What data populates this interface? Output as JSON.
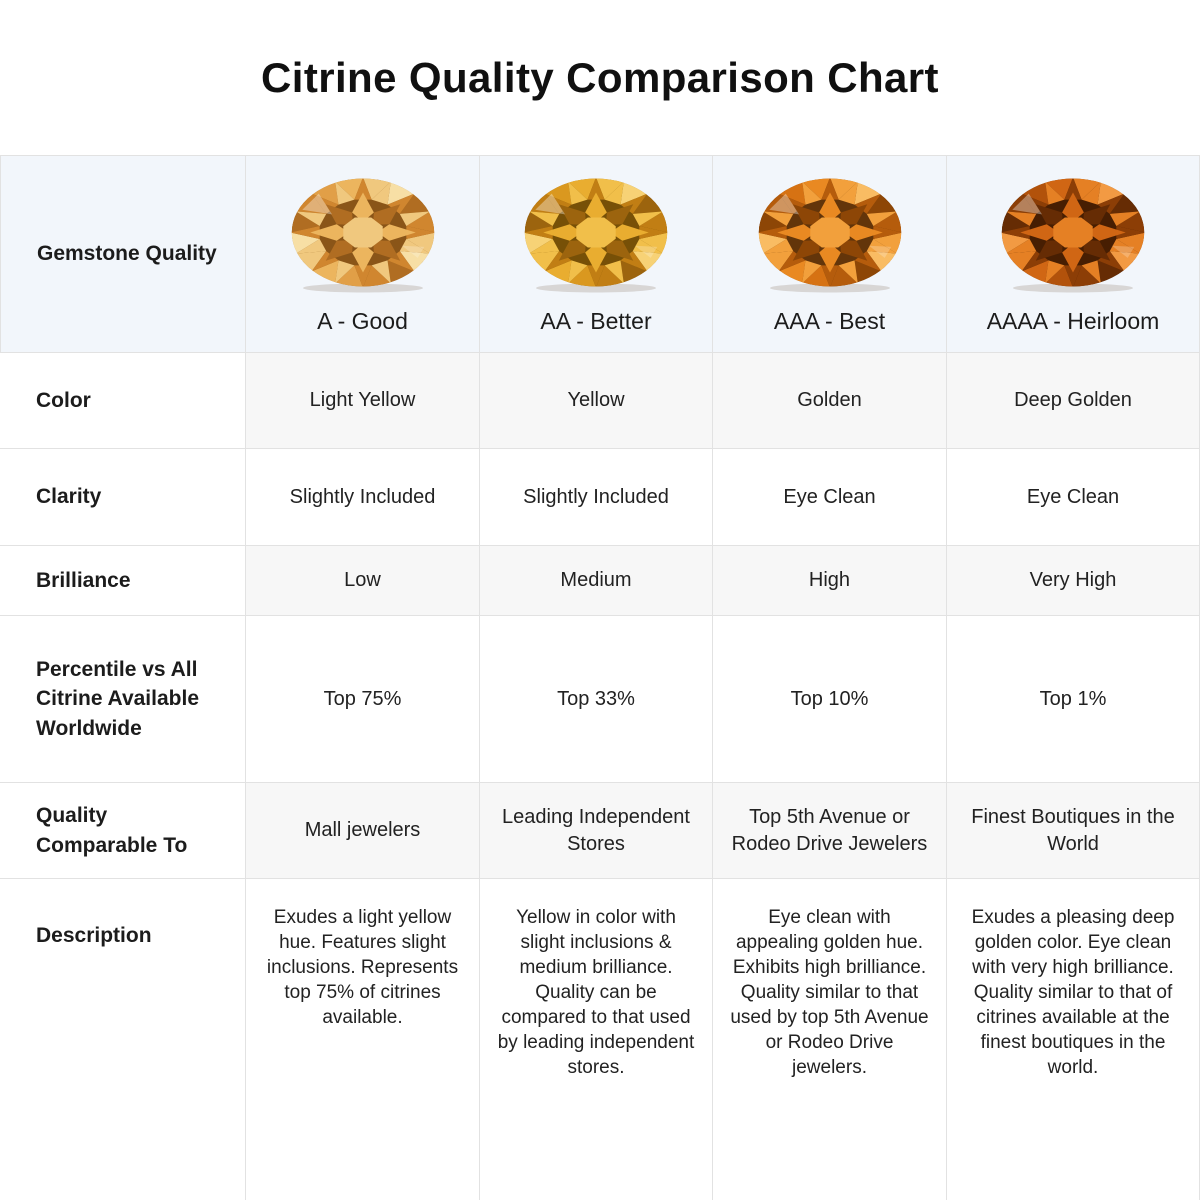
{
  "title": "Citrine Quality Comparison Chart",
  "chart_data": {
    "type": "table",
    "title": "Citrine Quality Comparison Chart",
    "corner_label": "Gemstone Quality",
    "grade_labels": [
      "A - Good",
      "AA - Better",
      "AAA - Best",
      "AAAA - Heirloom"
    ],
    "rows": [
      {
        "label": "Color",
        "values": [
          "Light Yellow",
          "Yellow",
          "Golden",
          "Deep Golden"
        ]
      },
      {
        "label": "Clarity",
        "values": [
          "Slightly Included",
          "Slightly Included",
          "Eye Clean",
          "Eye Clean"
        ]
      },
      {
        "label": "Brilliance",
        "values": [
          "Low",
          "Medium",
          "High",
          "Very High"
        ]
      },
      {
        "label": "Percentile vs All Citrine Available Worldwide",
        "values": [
          "Top 75%",
          "Top 33%",
          "Top 10%",
          "Top 1%"
        ]
      },
      {
        "label": "Quality Comparable To",
        "values": [
          "Mall jewelers",
          "Leading Independent Stores",
          "Top 5th Avenue or Rodeo Drive Jewelers",
          "Finest Boutiques in the World"
        ]
      },
      {
        "label": "Description",
        "values": [
          "Exudes a light yellow hue. Features slight inclusions. Represents top 75% of citrines available.",
          "Yellow in color with slight inclusions & medium brilliance. Quality can be compared to that used by leading independent stores.",
          "Eye clean with appealing golden hue. Exhibits high brilliance. Quality similar to that used by top 5th Avenue or Rodeo Drive jewelers.",
          "Exudes a pleasing deep golden color. Eye clean with very high brilliance. Quality similar to that of citrines available at the finest boutiques in the world."
        ]
      }
    ]
  },
  "gems": [
    {
      "name": "citrine-a-good",
      "palette": [
        "#f7dfa5",
        "#f0c87e",
        "#ecb55e",
        "#e19f47",
        "#d0862f",
        "#b06d22",
        "#8a5518"
      ]
    },
    {
      "name": "citrine-aa-better",
      "palette": [
        "#f7d276",
        "#f1bf4a",
        "#e9ad30",
        "#da981f",
        "#c17e14",
        "#9c640e",
        "#775007"
      ]
    },
    {
      "name": "citrine-aaa-best",
      "palette": [
        "#f9bc63",
        "#f2a03c",
        "#e98922",
        "#d67213",
        "#b55c0c",
        "#8d4606",
        "#63350a"
      ]
    },
    {
      "name": "citrine-aaaa-heirloom",
      "palette": [
        "#f29a43",
        "#e58024",
        "#d06614",
        "#b2520b",
        "#8c3e06",
        "#662c04",
        "#471e02"
      ]
    }
  ],
  "style": {
    "header_bg": "#f2f6fb",
    "shaded_cell_bg": "#f7f7f7",
    "border_color": "#e2e2e2",
    "title_color": "#101010"
  }
}
